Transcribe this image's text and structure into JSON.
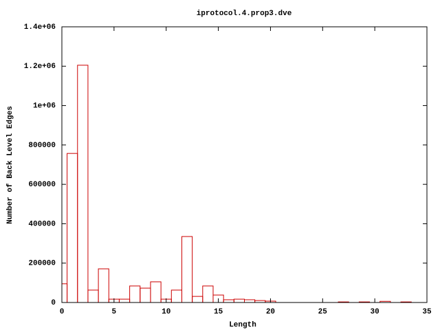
{
  "chart_data": {
    "type": "bar",
    "title": "iprotocol.4.prop3.dve",
    "x_label": "Length",
    "y_label": "Number of Back Level Edges",
    "x": [
      0,
      1,
      2,
      3,
      4,
      5,
      6,
      7,
      8,
      9,
      10,
      11,
      12,
      13,
      14,
      15,
      16,
      17,
      18,
      19,
      20,
      27,
      29,
      31,
      33
    ],
    "values": [
      95000,
      757000,
      1205000,
      63000,
      171000,
      17000,
      17000,
      84000,
      73000,
      105000,
      17000,
      63000,
      335000,
      31000,
      84000,
      38000,
      14000,
      17000,
      14000,
      10000,
      7000,
      3000,
      3000,
      6000,
      3000
    ],
    "color": "#cc0000",
    "xlim": [
      0,
      35
    ],
    "xticks": [
      0,
      5,
      10,
      15,
      20,
      25,
      30,
      35
    ],
    "ylim": [
      0,
      1400000
    ],
    "yticks": [
      0,
      200000,
      400000,
      600000,
      800000,
      {
        "value": 1000000,
        "label": "1e+06"
      },
      {
        "value": 1200000,
        "label": "1.2e+06"
      },
      {
        "value": 1400000,
        "label": "1.4e+06"
      }
    ]
  }
}
